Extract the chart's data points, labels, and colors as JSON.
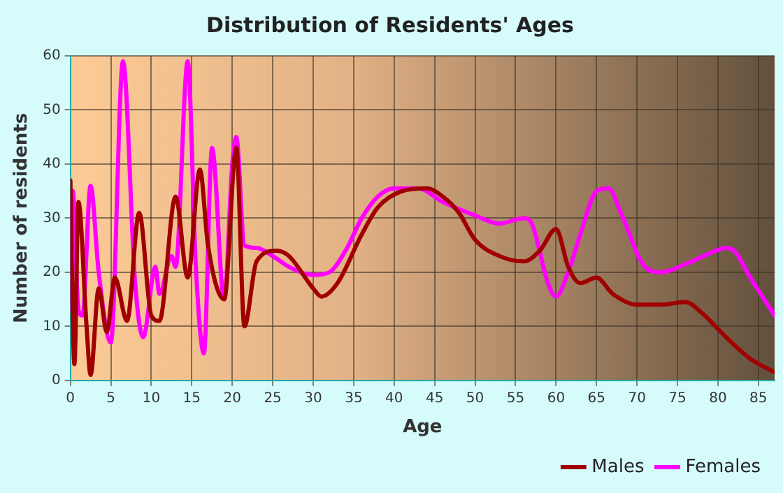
{
  "chart_data": {
    "type": "line",
    "title": "Distribution of Residents' Ages",
    "xlabel": "Age",
    "ylabel": "Number of residents",
    "xlim": [
      0,
      87
    ],
    "xticks": [
      0,
      5,
      10,
      15,
      20,
      25,
      30,
      35,
      40,
      45,
      50,
      55,
      60,
      65,
      70,
      75,
      80,
      85
    ],
    "ylim": [
      0,
      60
    ],
    "yticks": [
      0,
      10,
      20,
      30,
      40,
      50,
      60
    ],
    "grid": true,
    "legend": "bottom",
    "marker": "none",
    "line_style": "solid",
    "series": [
      {
        "name": "Males",
        "color": "#a00000",
        "x": [
          0,
          0.5,
          1,
          2,
          2.5,
          3.5,
          4.5,
          5.5,
          7,
          8.5,
          10,
          11,
          13,
          14.5,
          16,
          17,
          19,
          20.5,
          21.5,
          23,
          25.5,
          27,
          30,
          31,
          33,
          36,
          38,
          41,
          44,
          46,
          48,
          50,
          53,
          56,
          58,
          60,
          61.5,
          63,
          65,
          67,
          70,
          73,
          76,
          78,
          81,
          84,
          87
        ],
        "values": [
          37,
          3,
          33,
          10,
          1,
          17,
          9,
          19,
          11,
          31,
          12,
          11,
          34,
          19,
          39,
          25,
          15,
          43,
          10,
          22,
          24,
          23,
          17,
          15.5,
          18,
          27,
          32,
          35,
          35.5,
          34,
          31,
          26,
          23,
          22,
          24,
          28,
          21,
          18,
          19,
          16,
          14,
          14,
          14.5,
          12.5,
          8,
          4,
          1.5
        ]
      },
      {
        "name": "Females",
        "color": "#ff00ff",
        "x": [
          0,
          0.3,
          1,
          1.5,
          2.5,
          3.5,
          5,
          6.5,
          8,
          9,
          10.5,
          11,
          12.5,
          13,
          14.5,
          15.5,
          16.5,
          17.5,
          19,
          20,
          20.5,
          21.5,
          23,
          25,
          27,
          30,
          32,
          34,
          36,
          38,
          40,
          43,
          46,
          50,
          53,
          56,
          57,
          59,
          60,
          61.5,
          63,
          65,
          66.5,
          68,
          71,
          73,
          76,
          79,
          81,
          82,
          84,
          87
        ],
        "values": [
          13,
          35,
          13,
          12,
          36,
          20,
          7,
          59,
          18,
          8,
          21,
          16,
          23,
          21,
          59,
          21,
          5,
          43,
          15,
          40,
          45,
          25,
          24.5,
          23,
          21,
          19.5,
          20,
          24,
          30,
          34,
          35.5,
          35.5,
          33,
          30.5,
          29,
          30,
          29,
          18,
          15.5,
          20,
          27,
          35,
          35.5,
          31,
          21,
          20,
          21.5,
          23.5,
          24.5,
          24,
          19,
          12
        ]
      }
    ]
  }
}
